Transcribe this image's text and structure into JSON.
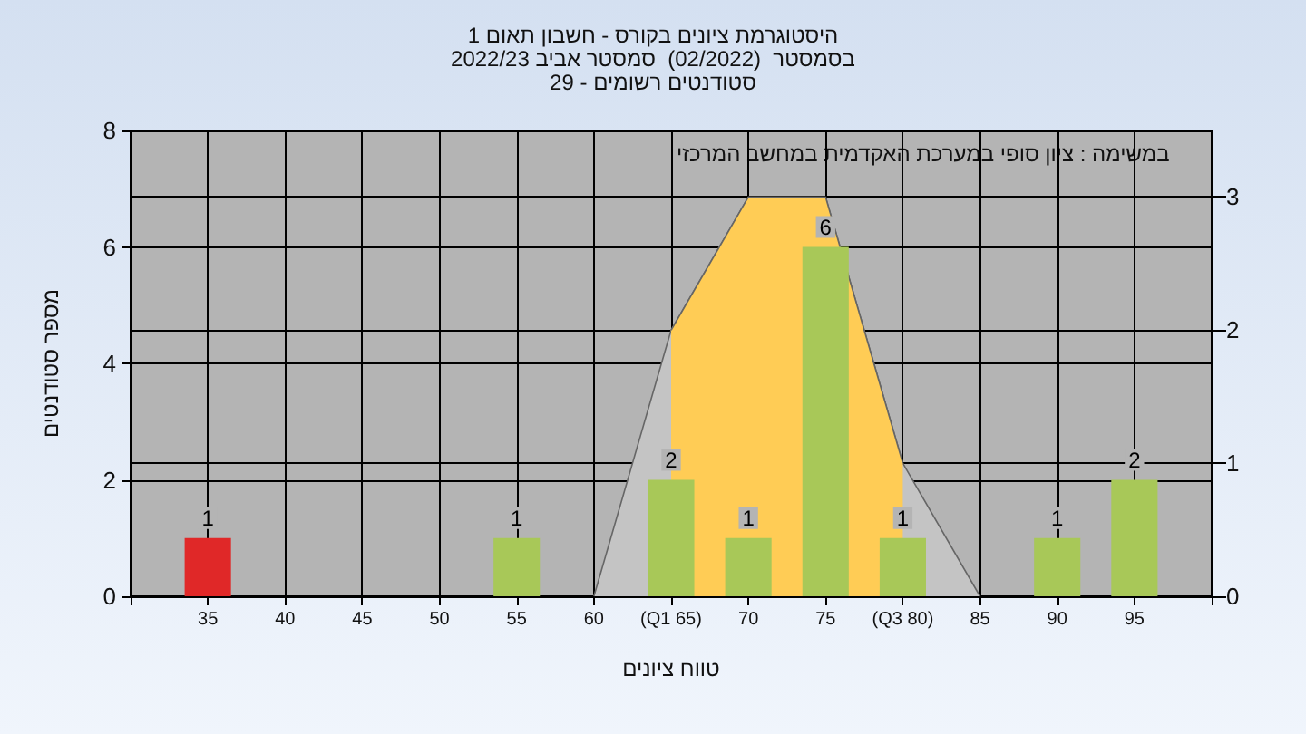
{
  "chart_data": {
    "type": "bar",
    "title": "היסטוגרמת ציונים בקורס - חשבון תאום 1",
    "subtitle": "בסמסטר  (02/2022)  סמסטר אביב 2022/23\nסטודנטים רשומים - 29",
    "xlabel": "טווח ציונים",
    "ylabel": "מספר סטודנטים",
    "annotations": [
      "במשימה : ציון סופי במערכת האקדמית במחשב המרכזי"
    ],
    "xlim": [
      30,
      100
    ],
    "xticks": [
      {
        "value": 30,
        "label": null
      },
      35,
      40,
      45,
      50,
      55,
      60,
      {
        "value": 65,
        "label": "(Q1 65)"
      },
      70,
      75,
      {
        "value": 80,
        "label": "(Q3 80)"
      },
      85,
      90,
      95,
      {
        "value": 100,
        "label": null
      }
    ],
    "ylim": [
      0,
      8
    ],
    "yticks": [
      0,
      2,
      4,
      6,
      8
    ],
    "y2lim": [
      0,
      3.5
    ],
    "y2ticks": [
      0,
      1,
      2,
      3
    ],
    "grid": true,
    "series": [
      {
        "type": "area",
        "axis": "y2",
        "color": "#c4c4c4",
        "marker": "none",
        "x": [
          60,
          65,
          70,
          75,
          80,
          85
        ],
        "values": [
          0,
          2,
          3,
          3,
          1,
          0
        ]
      },
      {
        "type": "area",
        "axis": "y2",
        "color": "#ffcc55",
        "marker": "none",
        "x": [
          65,
          70,
          75,
          80
        ],
        "values": [
          2,
          3,
          3,
          1
        ]
      },
      {
        "data_labels": true,
        "x": [
          35,
          55,
          65,
          70,
          75,
          80,
          90,
          95
        ],
        "values": [
          1,
          1,
          2,
          1,
          6,
          1,
          1,
          2
        ],
        "colors": [
          "#e02828",
          "#a8c858",
          "#a8c858",
          "#a8c858",
          "#a8c858",
          "#a8c858",
          "#a8c858",
          "#a8c858"
        ]
      }
    ]
  }
}
